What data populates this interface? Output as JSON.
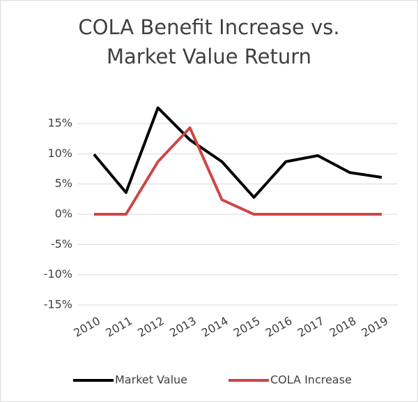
{
  "chart_data": {
    "type": "line",
    "title": "COLA Benefit Increase vs. Market Value Return",
    "categories": [
      "2010",
      "2011",
      "2012",
      "2013",
      "2014",
      "2015",
      "2016",
      "2017",
      "2018",
      "2019"
    ],
    "series": [
      {
        "name": "Market Value",
        "color": "#000000",
        "values": [
          9.9,
          3.6,
          17.6,
          12.3,
          8.7,
          2.8,
          8.7,
          9.7,
          6.9,
          6.1
        ]
      },
      {
        "name": "COLA Increase",
        "color": "#d04545",
        "values": [
          0,
          0,
          8.7,
          14.3,
          2.4,
          0,
          0,
          0,
          0,
          0
        ]
      }
    ],
    "ylim": [
      -15,
      20
    ],
    "yticks": [
      {
        "value": -15,
        "label": "-15%"
      },
      {
        "value": -10,
        "label": "-10%"
      },
      {
        "value": -5,
        "label": "-5%"
      },
      {
        "value": 0,
        "label": "0%"
      },
      {
        "value": 5,
        "label": "5%"
      },
      {
        "value": 10,
        "label": "10%"
      },
      {
        "value": 15,
        "label": "15%"
      }
    ],
    "grid": true,
    "legend": "bottom"
  }
}
